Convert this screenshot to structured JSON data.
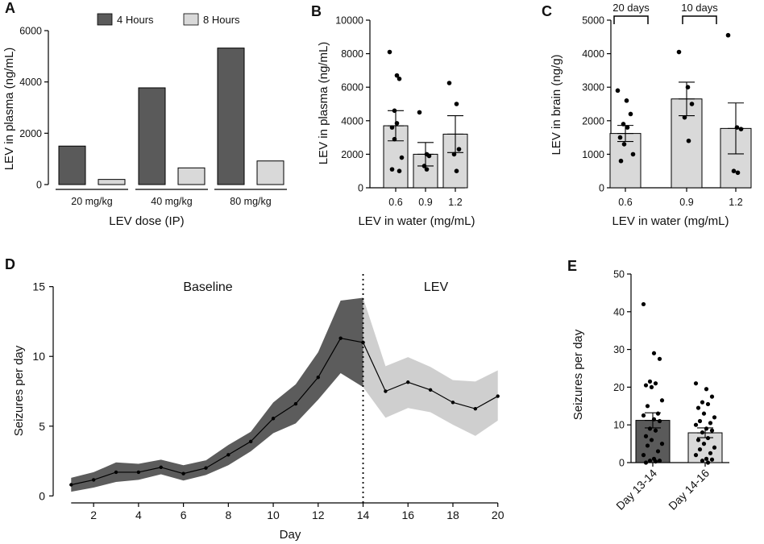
{
  "colors": {
    "dark": "#5a5a5a",
    "light": "#d9d9d9",
    "band_dark": "#5c5c5c",
    "band_light": "#cfcfcf",
    "line": "#000000"
  },
  "chart_data": [
    {
      "panel": "A",
      "type": "bar",
      "xlabel": "LEV dose (IP)",
      "ylabel": "LEV in plasma (ng/mL)",
      "ylim": [
        0,
        6000
      ],
      "yticks": [
        0,
        2000,
        4000,
        6000
      ],
      "categories": [
        "20 mg/kg",
        "40 mg/kg",
        "80 mg/kg"
      ],
      "series": [
        {
          "name": "4 Hours",
          "values": [
            1500,
            3770,
            5320
          ]
        },
        {
          "name": "8 Hours",
          "values": [
            200,
            650,
            920
          ]
        }
      ],
      "legend": [
        "4 Hours",
        "8 Hours"
      ]
    },
    {
      "panel": "B",
      "type": "bar",
      "xlabel": "LEV in water (mg/mL)",
      "ylabel": "LEV in plasma (ng/mL)",
      "ylim": [
        0,
        10000
      ],
      "yticks": [
        0,
        2000,
        4000,
        6000,
        8000,
        10000
      ],
      "categories": [
        "0.6",
        "0.9",
        "1.2"
      ],
      "means": [
        3700,
        2000,
        3200
      ],
      "errors": [
        900,
        700,
        1100
      ],
      "points": [
        [
          8100,
          6700,
          6500,
          4600,
          3850,
          3600,
          2900,
          1800,
          1100,
          1000
        ],
        [
          4500,
          2000,
          1900,
          1300,
          1100
        ],
        [
          6250,
          5000,
          2300,
          2000,
          1000
        ]
      ]
    },
    {
      "panel": "C",
      "type": "bar",
      "xlabel": "LEV in water (mg/mL)",
      "ylabel": "LEV in brain (ng/g)",
      "ylim": [
        0,
        5000
      ],
      "yticks": [
        0,
        1000,
        2000,
        3000,
        4000,
        5000
      ],
      "categories": [
        "0.6",
        "0.9",
        "1.2"
      ],
      "means": [
        1620,
        2650,
        1770
      ],
      "errors": [
        240,
        500,
        760
      ],
      "points": [
        [
          2900,
          2600,
          2200,
          1900,
          1800,
          1500,
          1300,
          1000,
          800
        ],
        [
          4050,
          3000,
          2500,
          2100,
          1400
        ],
        [
          4550,
          1800,
          1750,
          500,
          450
        ]
      ],
      "annotations": [
        "20 days",
        "10 days"
      ]
    },
    {
      "panel": "D",
      "type": "line",
      "xlabel": "Day",
      "ylabel": "Seizures per day",
      "xlim": [
        0.2,
        20.8
      ],
      "ylim": [
        -0.5,
        15.5
      ],
      "xticks": [
        2,
        4,
        6,
        8,
        10,
        12,
        14,
        16,
        18,
        20
      ],
      "yticks": [
        0,
        5,
        10,
        15
      ],
      "baseline_x": [
        1,
        2,
        3,
        4,
        5,
        6,
        7,
        8,
        9,
        10,
        11,
        12,
        13,
        14
      ],
      "baseline_mean": [
        0.8,
        1.15,
        1.7,
        1.7,
        2.05,
        1.6,
        2.0,
        2.95,
        3.9,
        5.55,
        6.6,
        8.5,
        11.3,
        11.0
      ],
      "baseline_low": [
        0.3,
        0.6,
        1.0,
        1.15,
        1.55,
        1.1,
        1.5,
        2.2,
        3.2,
        4.5,
        5.2,
        6.9,
        8.8,
        7.8
      ],
      "baseline_high": [
        1.3,
        1.7,
        2.4,
        2.3,
        2.6,
        2.2,
        2.55,
        3.65,
        4.6,
        6.7,
        8.0,
        10.3,
        14.0,
        14.2
      ],
      "lev_x": [
        14,
        15,
        16,
        17,
        18,
        19,
        20
      ],
      "lev_mean": [
        11.0,
        7.5,
        8.15,
        7.6,
        6.7,
        6.25,
        7.15
      ],
      "lev_low": [
        7.8,
        5.6,
        6.3,
        6.0,
        5.1,
        4.3,
        5.4
      ],
      "lev_high": [
        14.2,
        9.3,
        9.95,
        9.25,
        8.3,
        8.2,
        9.0
      ],
      "divider_x": 14,
      "regions": [
        "Baseline",
        "LEV"
      ]
    },
    {
      "panel": "E",
      "type": "bar",
      "ylabel": "Seizures per day",
      "ylim": [
        0,
        50
      ],
      "yticks": [
        0,
        10,
        20,
        30,
        40,
        50
      ],
      "categories": [
        "Day 13-14",
        "Day 14-16"
      ],
      "means": [
        11.2,
        7.9
      ],
      "errors": [
        2.0,
        1.3
      ],
      "points": [
        [
          42,
          29,
          27.5,
          21.5,
          21,
          20.5,
          20,
          16.5,
          15,
          13,
          12.5,
          11.5,
          11,
          9,
          8.5,
          7,
          6,
          5,
          4.5,
          3,
          2,
          1,
          0.5,
          0.5,
          0.3,
          0
        ],
        [
          21,
          19.5,
          17.5,
          16,
          15.5,
          14.5,
          13,
          12,
          11,
          10.5,
          10,
          9,
          8.5,
          8,
          6.5,
          6,
          5,
          4,
          3.5,
          2.5,
          2,
          1,
          0.8,
          0.5,
          0
        ]
      ]
    }
  ]
}
